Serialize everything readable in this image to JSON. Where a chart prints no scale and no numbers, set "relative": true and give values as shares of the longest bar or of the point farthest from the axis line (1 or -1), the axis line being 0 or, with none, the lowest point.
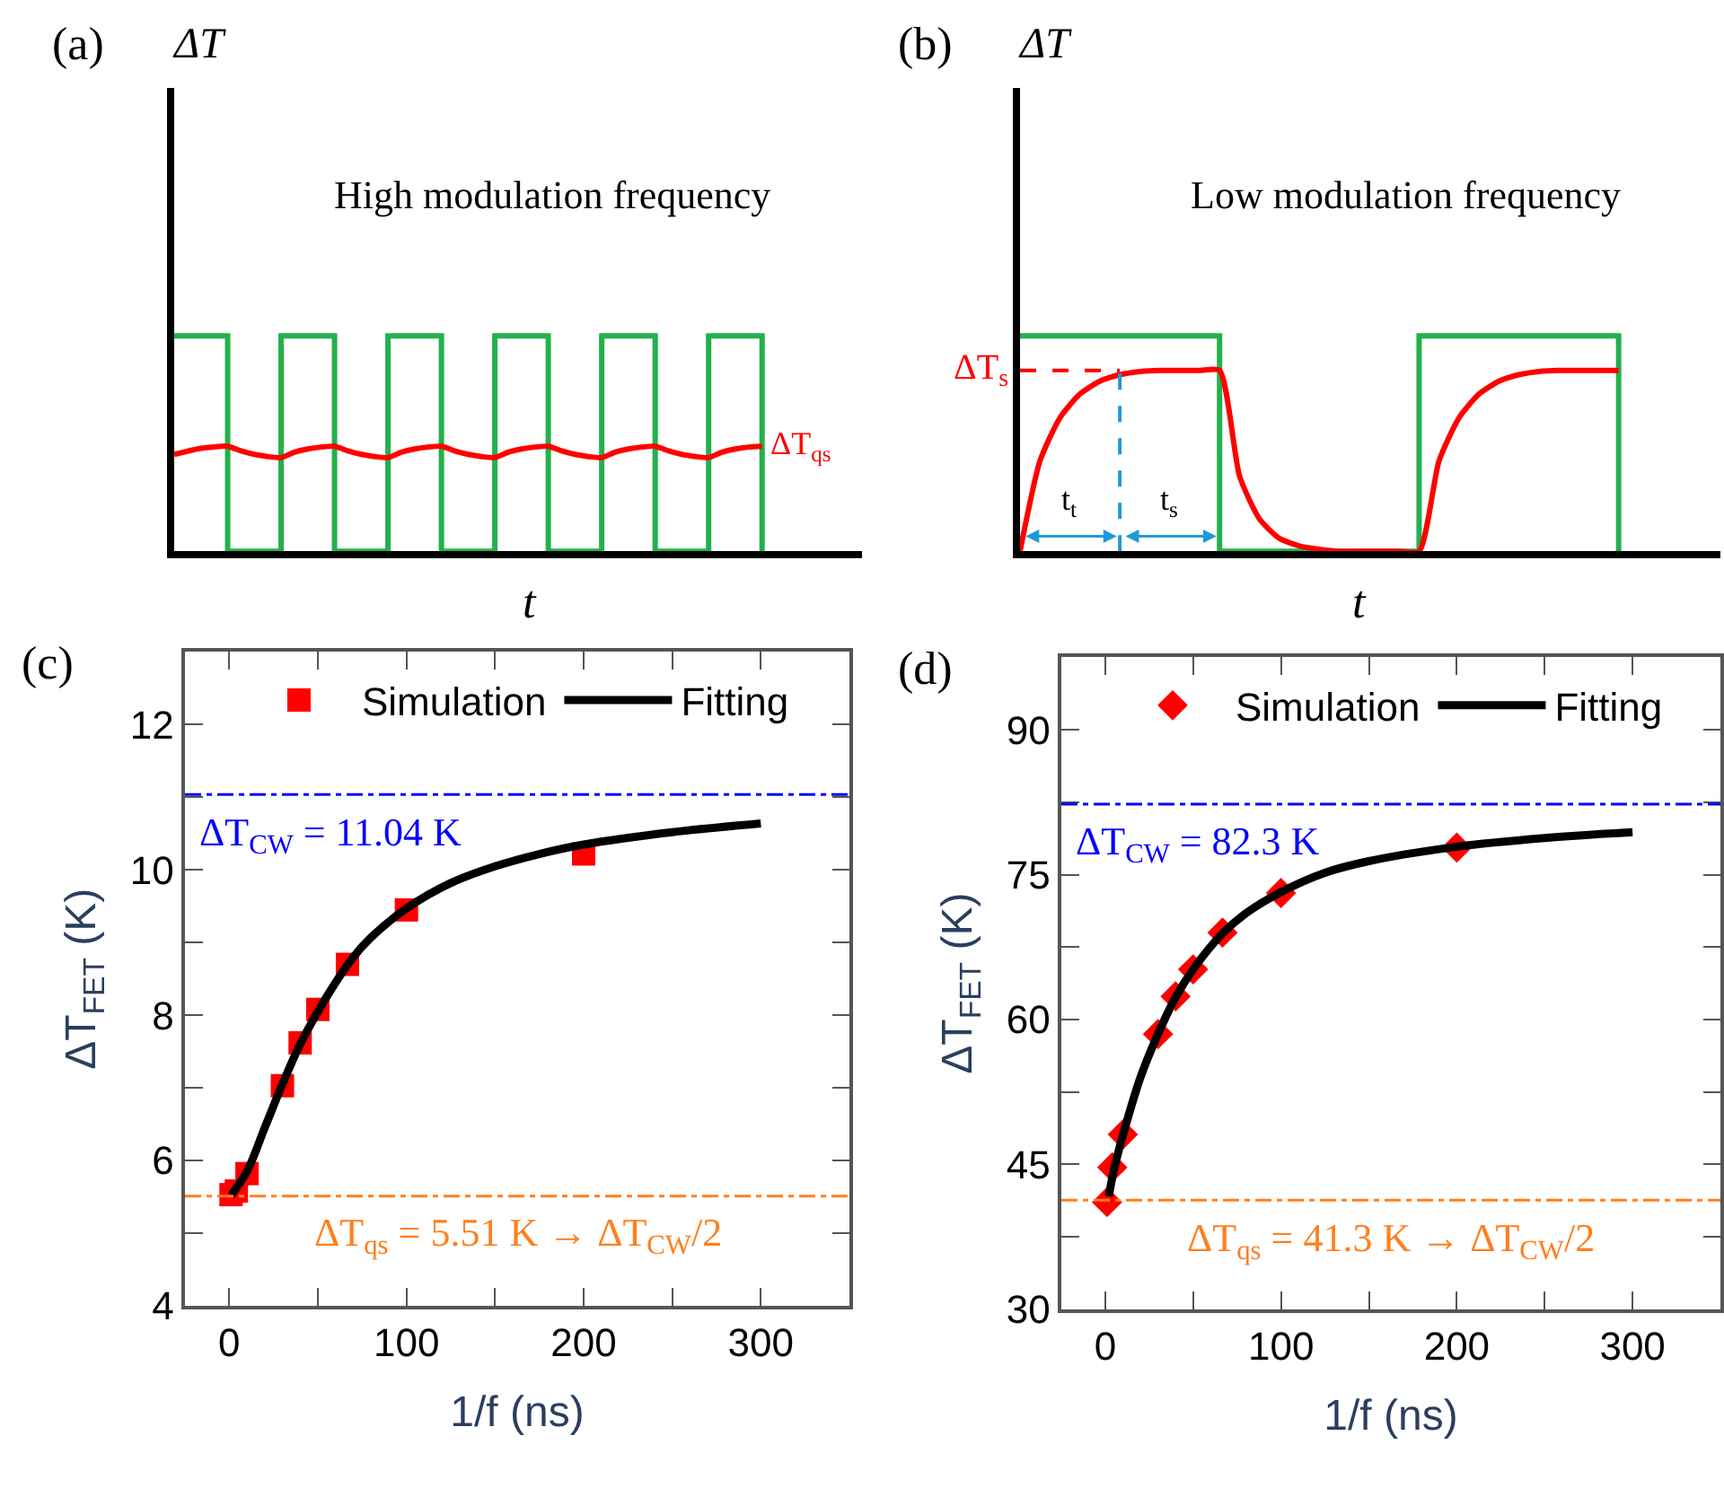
{
  "chart_data": [
    {
      "type": "line",
      "relative": true,
      "title": "High modulation frequency",
      "xlabel": "t",
      "ylabel": "ΔT",
      "annotations": [
        "(a)"
      ],
      "categories": [
        null,
        null,
        null,
        null,
        null,
        null,
        null,
        null,
        null,
        null,
        null,
        null,
        null,
        null,
        null,
        null,
        null,
        null,
        null,
        null,
        null,
        null,
        null,
        null,
        null,
        null,
        null,
        null,
        null,
        null,
        null,
        null,
        null,
        null,
        null,
        null,
        null,
        null,
        null,
        null,
        null,
        null,
        null,
        null,
        null
      ],
      "series": [
        {
          "type": "step",
          "color": "#22b14c",
          "values": [
            1,
            1,
            1,
            1,
            0,
            0,
            0,
            0,
            1,
            1,
            1,
            1,
            0,
            0,
            0,
            0,
            1,
            1,
            1,
            1,
            0,
            0,
            0,
            0,
            1,
            1,
            1,
            1,
            0,
            0,
            0,
            0,
            1,
            1,
            1,
            1,
            0,
            0,
            0,
            0,
            1,
            1,
            1,
            1,
            0
          ]
        },
        {
          "type": "line",
          "name": "ΔT$_{qs}$",
          "color": "#ff0000",
          "values": [
            0.45,
            0.465,
            0.478,
            0.485,
            0.488,
            0.466,
            0.45,
            0.44,
            0.435,
            0.46,
            0.475,
            0.484,
            0.488,
            0.466,
            0.45,
            0.44,
            0.435,
            0.46,
            0.475,
            0.484,
            0.488,
            0.466,
            0.45,
            0.44,
            0.435,
            0.46,
            0.475,
            0.484,
            0.488,
            0.466,
            0.45,
            0.44,
            0.435,
            0.46,
            0.475,
            0.484,
            0.488,
            0.466,
            0.45,
            0.44,
            0.435,
            0.46,
            0.475,
            0.484,
            0.488
          ]
        }
      ]
    },
    {
      "type": "line",
      "relative": true,
      "title": "Low modulation frequency",
      "xlabel": "t",
      "ylabel": "ΔT",
      "annotations": [
        "(b)",
        "t$_{t}$",
        "t$_{s}$"
      ],
      "categories": [
        null,
        null,
        null,
        null,
        null,
        null,
        null,
        null,
        null,
        null,
        null,
        null,
        null,
        null,
        null,
        null,
        null,
        null,
        null,
        null,
        null,
        null,
        null,
        null,
        null,
        null,
        null,
        null,
        null,
        null,
        null
      ],
      "series": [
        {
          "type": "step",
          "color": "#22b14c",
          "values": [
            1,
            1,
            1,
            1,
            1,
            1,
            1,
            1,
            1,
            1,
            0,
            0,
            0,
            0,
            0,
            0,
            0,
            0,
            0,
            0,
            1,
            1,
            1,
            1,
            1,
            1,
            1,
            1,
            1,
            1,
            0
          ]
        },
        {
          "type": "line",
          "color": "#ff0000",
          "values": [
            0,
            0.42,
            0.62,
            0.73,
            0.79,
            0.82,
            0.835,
            0.84,
            0.84,
            0.84,
            0.84,
            0.35,
            0.15,
            0.06,
            0.025,
            0.01,
            0,
            0,
            0,
            0,
            0,
            0.42,
            0.62,
            0.73,
            0.79,
            0.82,
            0.835,
            0.84,
            0.84,
            0.84,
            0.84
          ]
        }
      ],
      "ref_lines": [
        {
          "axis": "y",
          "value": 0.84,
          "label": "ΔT$_{s}$",
          "color": "#ff0000",
          "line_style": "dashed"
        }
      ]
    },
    {
      "type": "scatter",
      "xlabel": "1/f (ns)",
      "ylabel": "ΔT$_{FET}$ (K)",
      "annotations": [
        "(c)"
      ],
      "legend": "top",
      "xlim": [
        -25,
        350
      ],
      "xticks": [
        0,
        {
          "value": 50,
          "label": null
        },
        100,
        {
          "value": 150,
          "label": null
        },
        200,
        {
          "value": 250,
          "label": null
        },
        300
      ],
      "ylim": [
        4,
        13
      ],
      "yticks": [
        4,
        {
          "value": 5,
          "label": null
        },
        6,
        {
          "value": 7,
          "label": null
        },
        8,
        {
          "value": 9,
          "label": null
        },
        10,
        {
          "value": 11,
          "label": null
        },
        12
      ],
      "series": [
        {
          "type": "scatter",
          "name": "Simulation",
          "color": "#ff0000",
          "marker": "square",
          "x": [
            1,
            4,
            10,
            30,
            40,
            50,
            66.7,
            100,
            200
          ],
          "values": [
            5.53,
            5.58,
            5.82,
            7.03,
            7.62,
            8.08,
            8.7,
            9.45,
            10.22
          ]
        },
        {
          "type": "line",
          "name": "Fitting",
          "color": "#000000",
          "line_style": "solid",
          "x": [
            1,
            10,
            20,
            30,
            40,
            50,
            60,
            70,
            80,
            100,
            125,
            150,
            175,
            200,
            250,
            300
          ],
          "values": [
            5.52,
            5.85,
            6.45,
            7.05,
            7.6,
            8.05,
            8.45,
            8.8,
            9.07,
            9.47,
            9.82,
            10.05,
            10.22,
            10.35,
            10.52,
            10.64
          ]
        }
      ],
      "ref_lines": [
        {
          "axis": "y",
          "value": 11.04,
          "label": "ΔT$_{CW}$ = 11.04 K",
          "color": "#0000ff",
          "line_style": "dashed"
        },
        {
          "axis": "y",
          "value": 5.51,
          "label": "ΔT$_{qs}$ = 5.51 K → ΔT$_{CW}$/2",
          "color": "#ff7f1e",
          "line_style": "dashed"
        }
      ]
    },
    {
      "type": "scatter",
      "xlabel": "1/f (ns)",
      "ylabel": "ΔT$_{FET}$ (K)",
      "annotations": [
        "(d)"
      ],
      "legend": "top",
      "xlim": [
        -25,
        350
      ],
      "xticks": [
        0,
        {
          "value": 50,
          "label": null
        },
        100,
        {
          "value": 150,
          "label": null
        },
        200,
        {
          "value": 250,
          "label": null
        },
        300
      ],
      "ylim": [
        30,
        97.5
      ],
      "yticks": [
        30,
        {
          "value": 37.5,
          "label": null
        },
        45,
        {
          "value": 52.5,
          "label": null
        },
        60,
        {
          "value": 67.5,
          "label": null
        },
        75,
        {
          "value": 82.5,
          "label": null
        },
        90
      ],
      "series": [
        {
          "type": "scatter",
          "name": "Simulation",
          "color": "#ff0000",
          "marker": "diamond",
          "x": [
            1,
            4,
            10,
            30,
            40,
            50,
            66.7,
            100,
            200
          ],
          "values": [
            41.1,
            44.7,
            48.1,
            58.5,
            62.4,
            65.2,
            69.0,
            73.1,
            77.8
          ]
        },
        {
          "type": "line",
          "name": "Fitting",
          "color": "#000000",
          "line_style": "solid",
          "x": [
            2,
            5,
            10,
            20,
            30,
            40,
            50,
            66.7,
            80,
            100,
            125,
            150,
            200,
            250,
            300
          ],
          "values": [
            41.7,
            44.5,
            48.0,
            54.0,
            58.5,
            62.3,
            65.2,
            68.9,
            71.0,
            73.2,
            75.2,
            76.4,
            77.9,
            78.8,
            79.4
          ]
        }
      ],
      "ref_lines": [
        {
          "axis": "y",
          "value": 82.3,
          "label": "ΔT$_{CW}$ = 82.3 K",
          "color": "#0000ff",
          "line_style": "dashed"
        },
        {
          "axis": "y",
          "value": 41.3,
          "label": "ΔT$_{qs}$ = 41.3 K → ΔT$_{CW}$/2",
          "color": "#ff7f1e",
          "line_style": "dashed"
        }
      ]
    }
  ]
}
